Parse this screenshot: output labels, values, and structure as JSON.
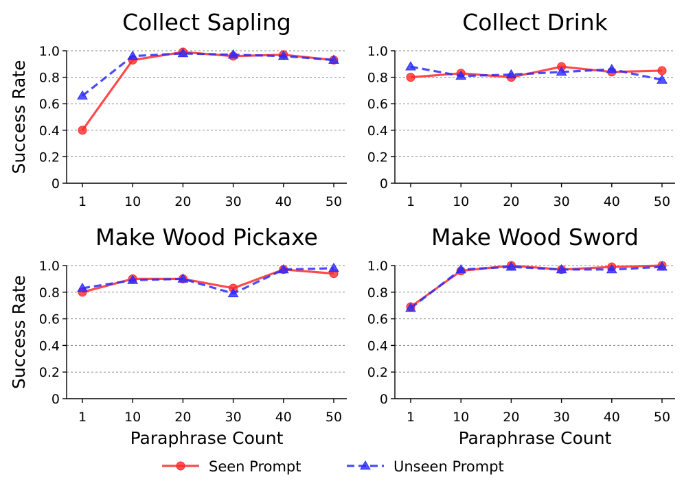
{
  "chart_data": [
    {
      "type": "line",
      "title": "Collect Sapling",
      "categories": [
        "1",
        "10",
        "20",
        "30",
        "40",
        "50"
      ],
      "ylabel": "Success Rate",
      "xlabel": "",
      "ylim": [
        0,
        1.0
      ],
      "yticks": [
        "0",
        "0.2",
        "0.4",
        "0.6",
        "0.8",
        "1.0"
      ],
      "series": [
        {
          "name": "Seen Prompt",
          "values": [
            0.4,
            0.93,
            0.99,
            0.96,
            0.97,
            0.93
          ]
        },
        {
          "name": "Unseen Prompt",
          "values": [
            0.66,
            0.96,
            0.98,
            0.97,
            0.96,
            0.93
          ]
        }
      ]
    },
    {
      "type": "line",
      "title": "Collect Drink",
      "categories": [
        "1",
        "10",
        "20",
        "30",
        "40",
        "50"
      ],
      "ylabel": "",
      "xlabel": "",
      "ylim": [
        0,
        1.0
      ],
      "yticks": [
        "0",
        "0.2",
        "0.4",
        "0.6",
        "0.8",
        "1.0"
      ],
      "series": [
        {
          "name": "Seen Prompt",
          "values": [
            0.8,
            0.83,
            0.8,
            0.88,
            0.84,
            0.85
          ]
        },
        {
          "name": "Unseen Prompt",
          "values": [
            0.88,
            0.81,
            0.82,
            0.84,
            0.86,
            0.78
          ]
        }
      ]
    },
    {
      "type": "line",
      "title": "Make Wood Pickaxe",
      "categories": [
        "1",
        "10",
        "20",
        "30",
        "40",
        "50"
      ],
      "ylabel": "Success Rate",
      "xlabel": "Paraphrase Count",
      "ylim": [
        0,
        1.0
      ],
      "yticks": [
        "0",
        "0.2",
        "0.4",
        "0.6",
        "0.8",
        "1.0"
      ],
      "series": [
        {
          "name": "Seen Prompt",
          "values": [
            0.8,
            0.9,
            0.9,
            0.83,
            0.97,
            0.94
          ]
        },
        {
          "name": "Unseen Prompt",
          "values": [
            0.83,
            0.89,
            0.9,
            0.79,
            0.97,
            0.98
          ]
        }
      ]
    },
    {
      "type": "line",
      "title": "Make Wood Sword",
      "categories": [
        "1",
        "10",
        "20",
        "30",
        "40",
        "50"
      ],
      "ylabel": "",
      "xlabel": "Paraphrase Count",
      "ylim": [
        0,
        1.0
      ],
      "yticks": [
        "0",
        "0.2",
        "0.4",
        "0.6",
        "0.8",
        "1.0"
      ],
      "series": [
        {
          "name": "Seen Prompt",
          "values": [
            0.69,
            0.96,
            1.0,
            0.97,
            0.99,
            1.0
          ]
        },
        {
          "name": "Unseen Prompt",
          "values": [
            0.68,
            0.97,
            0.99,
            0.97,
            0.97,
            0.99
          ]
        }
      ]
    }
  ],
  "legend": {
    "position": "bottom-center",
    "items": [
      {
        "label": "Seen Prompt",
        "color": "#ff2a2a",
        "marker": "circle",
        "style": "solid"
      },
      {
        "label": "Unseen Prompt",
        "color": "#2a2aff",
        "marker": "triangle",
        "style": "dashed"
      }
    ]
  },
  "grid": true
}
